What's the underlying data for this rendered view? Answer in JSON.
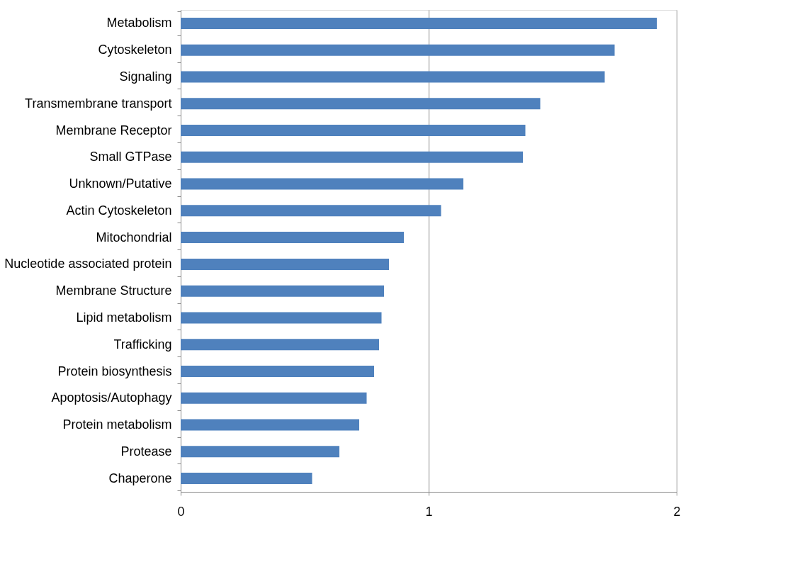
{
  "chart_data": {
    "type": "bar",
    "orientation": "horizontal",
    "categories": [
      "Metabolism",
      "Cytoskeleton",
      "Signaling",
      "Transmembrane transport",
      "Membrane Receptor",
      "Small GTPase",
      "Unknown/Putative",
      "Actin Cytoskeleton",
      "Mitochondrial",
      "Nucleotide associated protein",
      "Membrane Structure",
      "Lipid metabolism",
      "Trafficking",
      "Protein biosynthesis",
      "Apoptosis/Autophagy",
      "Protein metabolism",
      "Protease",
      "Chaperone"
    ],
    "values": [
      1.92,
      1.75,
      1.71,
      1.45,
      1.39,
      1.38,
      1.14,
      1.05,
      0.9,
      0.84,
      0.82,
      0.81,
      0.8,
      0.78,
      0.75,
      0.72,
      0.64,
      0.53
    ],
    "color": "#4f81bd",
    "xlim": [
      0,
      2
    ],
    "xticks": [
      0,
      1,
      2
    ],
    "grid": "x"
  }
}
